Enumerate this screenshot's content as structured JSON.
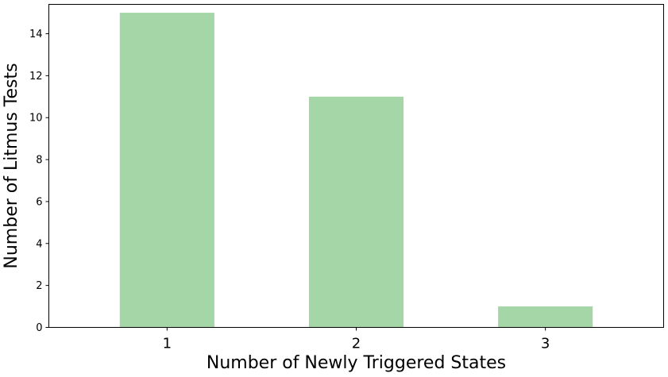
{
  "chart_data": {
    "type": "bar",
    "categories": [
      "1",
      "2",
      "3"
    ],
    "values": [
      15,
      11,
      1
    ],
    "xlabel": "Number of Newly Triggered States",
    "ylabel": "Number of Litmus Tests",
    "ylim": [
      0,
      15.4
    ],
    "yticks": [
      "0",
      "2",
      "4",
      "6",
      "8",
      "10",
      "12",
      "14"
    ],
    "bar_color": "#a5d6a7",
    "grid": false,
    "legend": "none"
  }
}
